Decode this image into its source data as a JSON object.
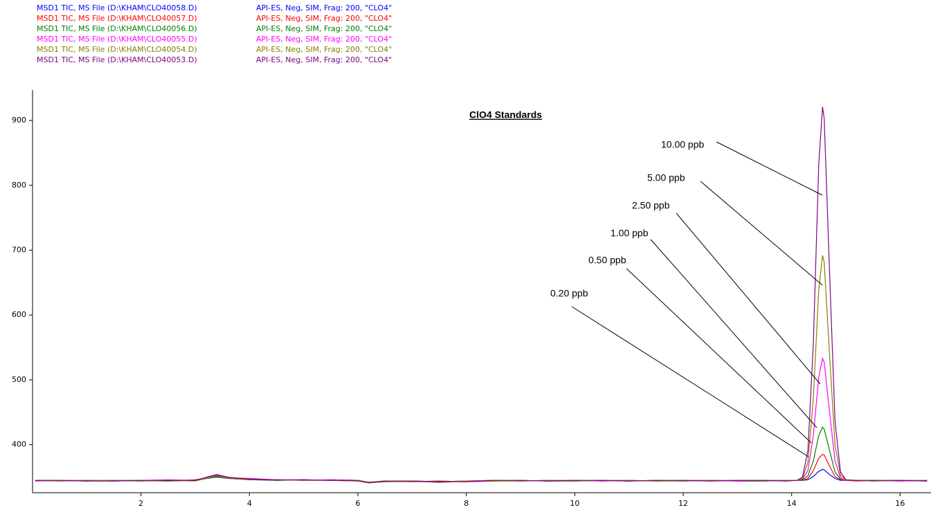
{
  "chart_data": {
    "type": "line",
    "title": "ClO4 Standards",
    "x": [
      0.05,
      0.5,
      1,
      1.5,
      2,
      2.5,
      3,
      3.3,
      3.4,
      3.6,
      4,
      4.5,
      5,
      5.5,
      6,
      6.2,
      6.5,
      7,
      7.5,
      8,
      8.5,
      9,
      9.5,
      10,
      10.5,
      11,
      11.5,
      12,
      12.5,
      13,
      13.5,
      13.9,
      14.1,
      14.2,
      14.3,
      14.4,
      14.5,
      14.57,
      14.6,
      14.7,
      14.8,
      14.9,
      15.0,
      15.2,
      15.5,
      16,
      16.5
    ],
    "series": [
      {
        "name": "MSD1 TIC, MS File (D:\\KHAM\\CLO40058.D)",
        "method": "API-ES, Neg, SIM, Frag: 200, \"CLO4\"",
        "color": "#0000ff",
        "values": [
          344,
          345,
          344,
          345,
          344,
          345,
          345,
          349,
          351,
          348,
          346,
          345,
          346,
          345,
          344,
          342,
          343,
          344,
          343,
          344,
          345,
          344,
          345,
          344,
          345,
          344,
          345,
          344,
          345,
          344,
          344,
          345,
          345,
          345,
          346,
          351,
          359,
          362,
          361,
          354,
          348,
          345,
          345,
          345,
          344,
          345,
          344
        ]
      },
      {
        "name": "MSD1 TIC, MS File (D:\\KHAM\\CLO40057.D)",
        "method": "API-ES, Neg, SIM, Frag: 200, \"CLO4\"",
        "color": "#ff0000",
        "values": [
          345,
          344,
          345,
          344,
          345,
          344,
          346,
          350,
          352,
          349,
          347,
          346,
          345,
          346,
          345,
          341,
          344,
          343,
          344,
          343,
          344,
          345,
          344,
          345,
          344,
          345,
          344,
          345,
          344,
          345,
          345,
          344,
          345,
          345,
          348,
          360,
          379,
          385,
          384,
          367,
          351,
          346,
          345,
          344,
          345,
          344,
          345
        ]
      },
      {
        "name": "MSD1 TIC, MS File (D:\\KHAM\\CLO40056.D)",
        "method": "API-ES, Neg, SIM, Frag: 200, \"CLO4\"",
        "color": "#008000",
        "values": [
          345,
          345,
          344,
          345,
          345,
          344,
          345,
          349,
          350,
          348,
          347,
          345,
          346,
          345,
          344,
          341,
          343,
          344,
          342,
          344,
          344,
          345,
          344,
          344,
          345,
          344,
          345,
          344,
          345,
          344,
          344,
          345,
          345,
          346,
          352,
          375,
          414,
          427,
          424,
          391,
          358,
          347,
          345,
          345,
          344,
          345,
          344
        ]
      },
      {
        "name": "MSD1 TIC, MS File (D:\\KHAM\\CLO40055.D)",
        "method": "API-ES, Neg, SIM, Frag: 200, \"CLO4\"",
        "color": "#ff00ff",
        "values": [
          344,
          345,
          345,
          344,
          345,
          346,
          345,
          351,
          353,
          349,
          348,
          346,
          345,
          346,
          345,
          342,
          344,
          344,
          343,
          344,
          345,
          344,
          345,
          345,
          344,
          345,
          344,
          345,
          345,
          344,
          345,
          345,
          345,
          347,
          360,
          414,
          504,
          533,
          527,
          450,
          375,
          349,
          345,
          345,
          345,
          344,
          345
        ]
      },
      {
        "name": "MSD1 TIC, MS File (D:\\KHAM\\CLO40054.D)",
        "method": "API-ES, Neg, SIM, Frag: 200, \"CLO4\"",
        "color": "#808000",
        "values": [
          345,
          344,
          345,
          345,
          344,
          345,
          344,
          350,
          352,
          348,
          346,
          346,
          345,
          345,
          344,
          341,
          343,
          343,
          343,
          344,
          344,
          344,
          345,
          344,
          345,
          345,
          344,
          344,
          345,
          345,
          344,
          345,
          345,
          348,
          373,
          472,
          638,
          692,
          681,
          538,
          400,
          353,
          346,
          345,
          344,
          345,
          345
        ]
      },
      {
        "name": "MSD1 TIC, MS File (D:\\KHAM\\CLO40053.D)",
        "method": "API-ES, Neg, SIM, Frag: 200, \"CLO4\"",
        "color": "#800080",
        "values": [
          345,
          345,
          344,
          344,
          345,
          345,
          345,
          352,
          354,
          350,
          347,
          346,
          346,
          345,
          345,
          342,
          344,
          344,
          343,
          343,
          345,
          345,
          344,
          345,
          345,
          344,
          345,
          345,
          344,
          345,
          345,
          344,
          345,
          350,
          391,
          556,
          831,
          921,
          903,
          665,
          437,
          358,
          346,
          345,
          345,
          345,
          344
        ]
      }
    ],
    "annotations": [
      "10.00 ppb",
      "5.00 ppb",
      "2.50 ppb",
      "1.00 ppb",
      "0.50 ppb",
      "0.20 ppb"
    ],
    "xlim": [
      0,
      16.57
    ],
    "ylim": [
      326,
      947
    ],
    "xticks": [
      2,
      4,
      6,
      8,
      10,
      12,
      14,
      16
    ],
    "yticks": [
      400,
      500,
      600,
      700,
      800,
      900
    ]
  }
}
